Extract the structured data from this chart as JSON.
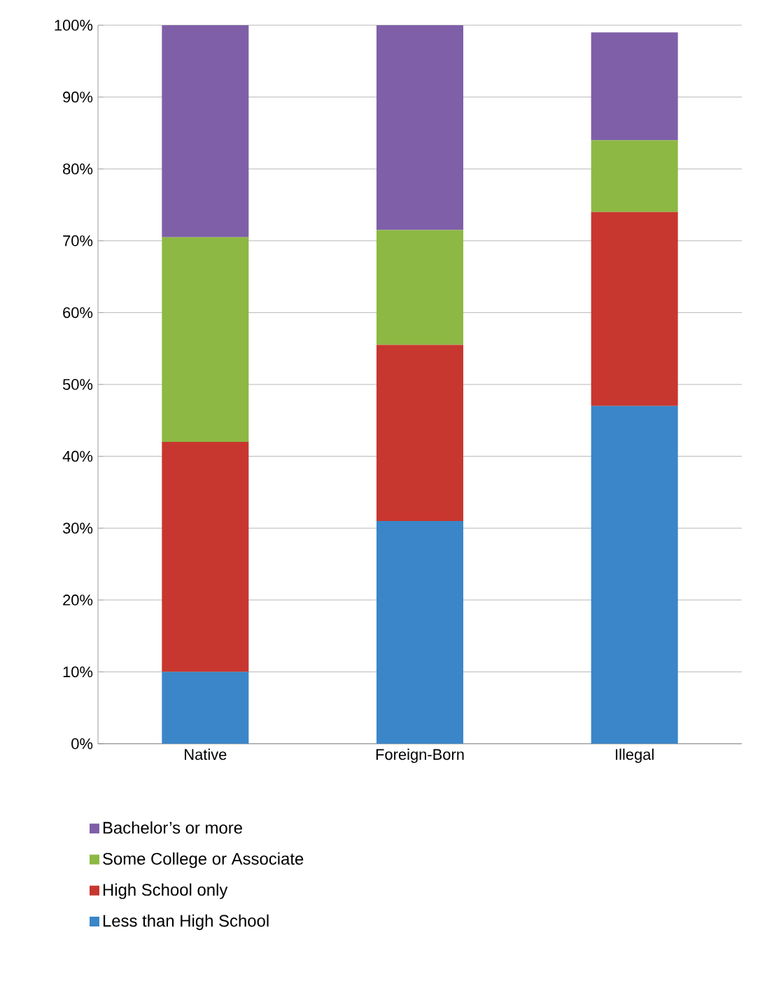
{
  "chart_data": {
    "type": "bar",
    "stacked": true,
    "categories": [
      "Native",
      "Foreign-Born",
      "Illegal"
    ],
    "series": [
      {
        "name": "Less than High School",
        "color": "#3a86c8",
        "values": [
          10,
          31,
          47
        ]
      },
      {
        "name": "High School only",
        "color": "#c7372f",
        "values": [
          32,
          24.5,
          27
        ]
      },
      {
        "name": "Some College or Associate",
        "color": "#8db843",
        "values": [
          28.5,
          16,
          10
        ]
      },
      {
        "name": "Bachelor’s or more",
        "color": "#7f5fa8",
        "values": [
          29.5,
          28.5,
          15
        ]
      }
    ],
    "ylim": [
      0,
      100
    ],
    "yticks": [
      {
        "value": 0,
        "label": "0%"
      },
      {
        "value": 10,
        "label": "10%"
      },
      {
        "value": 20,
        "label": "20%"
      },
      {
        "value": 30,
        "label": "30%"
      },
      {
        "value": 40,
        "label": "40%"
      },
      {
        "value": 50,
        "label": "50%"
      },
      {
        "value": 60,
        "label": "60%"
      },
      {
        "value": 70,
        "label": "70%"
      },
      {
        "value": 80,
        "label": "80%"
      },
      {
        "value": 90,
        "label": "90%"
      },
      {
        "value": 100,
        "label": "100%"
      }
    ],
    "grid": "y",
    "legend": "bottom"
  }
}
